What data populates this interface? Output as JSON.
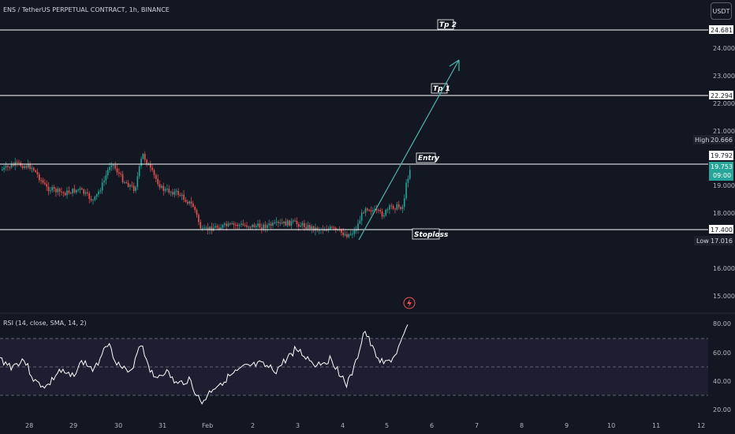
{
  "header": {
    "symbol_title": "ENS / TetherUS PERPETUAL CONTRACT, 1h, BINANCE",
    "currency": "USDT"
  },
  "price_axis": {
    "ticks": [
      "24.000",
      "23.000",
      "22.000",
      "21.000",
      "19.000",
      "18.000",
      "16.000",
      "15.000"
    ],
    "high_label": "High",
    "high_value": "20.666",
    "low_label": "Low",
    "low_value": "17.016",
    "current_price": "19.753",
    "countdown": "09:00"
  },
  "levels": [
    {
      "name": "Tp 2",
      "price_label": "24.681",
      "value": 24.681
    },
    {
      "name": "Tp 1",
      "price_label": "22.294",
      "value": 22.294
    },
    {
      "name": "Entry",
      "price_label": "19.792",
      "value": 19.792
    },
    {
      "name": "Stoploss",
      "price_label": "17.400",
      "value": 17.4
    }
  ],
  "time_axis": {
    "labels": [
      "28",
      "29",
      "30",
      "31",
      "Feb",
      "2",
      "3",
      "4",
      "5",
      "6",
      "7",
      "8",
      "9",
      "10",
      "11",
      "12"
    ]
  },
  "rsi": {
    "title": "RSI (14, close, SMA, 14, 2)",
    "ticks": [
      "80.00",
      "60.00",
      "40.00",
      "20.00"
    ],
    "upper_band": 70,
    "middle_band": 50,
    "lower_band": 30
  },
  "colors": {
    "background": "#131722",
    "up": "#26a69a",
    "down": "#ef5350",
    "level_line": "#ffffff",
    "arrow": "#4db6ac",
    "rsi_line": "#ffffff",
    "rsi_band_fill": "#7e57c2",
    "current_price_tag": "#26a69a"
  }
}
